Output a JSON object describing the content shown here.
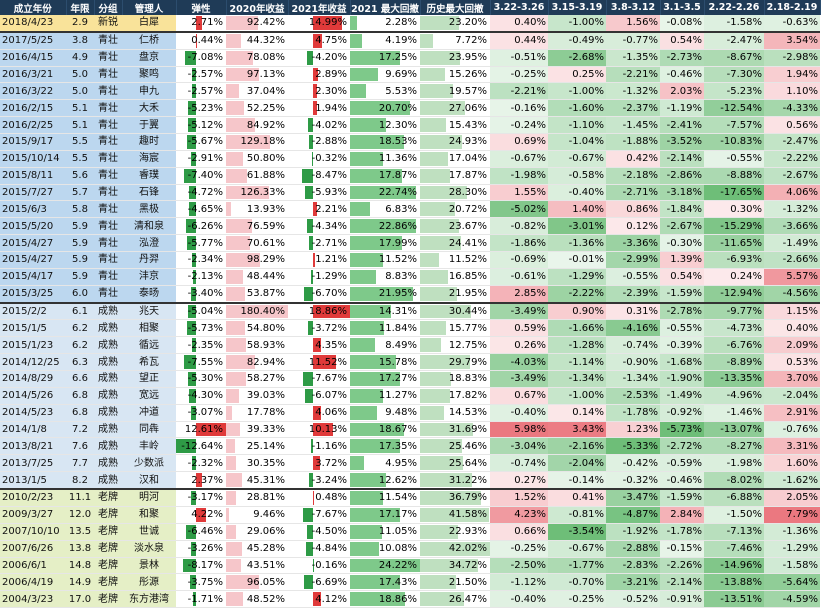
{
  "headers": [
    "成立年份",
    "年限",
    "分组",
    "管理人",
    "弹性",
    "2020年收益",
    "2021年收益",
    "2021 最大回撤",
    "历史最大回撤",
    "3.22-3.26",
    "3.15-3.19",
    "3.8-3.12",
    "3.1-3.5",
    "2.22-2.26",
    "2.18-2.19"
  ],
  "rows": [
    [
      "2018/4/23",
      "2.9",
      "新锐",
      "白犀",
      "2.71%",
      "92.42%",
      "14.99%",
      "2.28%",
      "23.20%",
      "0.40%",
      "-1.00%",
      "1.56%",
      "-0.08%",
      "-1.58%",
      "-0.63%"
    ],
    [
      "2017/5/25",
      "3.8",
      "青壮",
      "仁桥",
      "0.44%",
      "44.32%",
      "4.75%",
      "4.19%",
      "7.72%",
      "0.44%",
      "-0.49%",
      "-0.77%",
      "0.54%",
      "-2.47%",
      "3.54%"
    ],
    [
      "2016/4/15",
      "4.9",
      "青壮",
      "盘京",
      "-7.08%",
      "78.08%",
      "-4.20%",
      "17.25%",
      "23.95%",
      "-0.51%",
      "-2.68%",
      "-1.35%",
      "-2.73%",
      "-8.67%",
      "-2.98%"
    ],
    [
      "2016/3/21",
      "5.0",
      "青壮",
      "聚鸣",
      "-2.57%",
      "97.13%",
      "2.89%",
      "9.69%",
      "15.26%",
      "-0.25%",
      "0.25%",
      "-2.21%",
      "-0.46%",
      "-7.30%",
      "1.94%"
    ],
    [
      "2016/3/22",
      "5.0",
      "青壮",
      "申九",
      "-2.57%",
      "37.04%",
      "2.30%",
      "5.53%",
      "19.57%",
      "-2.21%",
      "-1.00%",
      "-1.32%",
      "2.03%",
      "-5.23%",
      "1.10%"
    ],
    [
      "2016/2/15",
      "5.1",
      "青壮",
      "大禾",
      "-5.23%",
      "52.25%",
      "1.94%",
      "20.70%",
      "27.06%",
      "-0.16%",
      "-1.60%",
      "-2.37%",
      "-1.19%",
      "-12.54%",
      "-4.33%"
    ],
    [
      "2016/2/25",
      "5.1",
      "青壮",
      "于翼",
      "-5.12%",
      "84.92%",
      "-4.02%",
      "12.30%",
      "15.43%",
      "-0.24%",
      "-1.10%",
      "-1.45%",
      "-2.41%",
      "-7.57%",
      "0.56%"
    ],
    [
      "2015/9/17",
      "5.5",
      "青壮",
      "趣时",
      "-5.67%",
      "129.18%",
      "-2.88%",
      "18.53%",
      "24.93%",
      "0.69%",
      "-1.04%",
      "-1.88%",
      "-3.52%",
      "-10.83%",
      "-2.47%"
    ],
    [
      "2015/10/14",
      "5.5",
      "青壮",
      "海宸",
      "-2.91%",
      "50.80%",
      "-0.32%",
      "11.36%",
      "17.04%",
      "-0.67%",
      "-0.67%",
      "0.42%",
      "-2.14%",
      "-0.55%",
      "-2.22%"
    ],
    [
      "2015/8/11",
      "5.6",
      "青壮",
      "睿璞",
      "-7.40%",
      "61.88%",
      "-8.47%",
      "17.87%",
      "17.87%",
      "-1.98%",
      "-0.58%",
      "-2.18%",
      "-2.86%",
      "-8.88%",
      "-2.67%"
    ],
    [
      "2015/7/27",
      "5.7",
      "青壮",
      "石锋",
      "-4.72%",
      "126.33%",
      "-5.93%",
      "22.74%",
      "28.30%",
      "1.55%",
      "-0.40%",
      "-2.71%",
      "-3.18%",
      "-17.65%",
      "4.06%"
    ],
    [
      "2015/6/3",
      "5.8",
      "青壮",
      "黑极",
      "-4.65%",
      "13.93%",
      "2.21%",
      "6.83%",
      "20.72%",
      "-5.02%",
      "1.40%",
      "0.86%",
      "-1.84%",
      "0.30%",
      "-1.32%"
    ],
    [
      "2015/5/20",
      "5.9",
      "青壮",
      "清和泉",
      "-6.26%",
      "76.59%",
      "-4.34%",
      "22.86%",
      "23.67%",
      "-0.82%",
      "-3.01%",
      "0.12%",
      "-2.67%",
      "-15.29%",
      "-3.66%"
    ],
    [
      "2015/4/27",
      "5.9",
      "青壮",
      "泓澄",
      "-5.77%",
      "70.61%",
      "-2.71%",
      "17.99%",
      "24.41%",
      "-1.86%",
      "-1.36%",
      "-3.36%",
      "-0.30%",
      "-11.65%",
      "-1.49%"
    ],
    [
      "2015/4/27",
      "5.9",
      "青壮",
      "丹羿",
      "-2.34%",
      "98.29%",
      "1.21%",
      "11.52%",
      "11.52%",
      "-0.69%",
      "-0.01%",
      "-2.99%",
      "1.39%",
      "-6.93%",
      "-2.66%"
    ],
    [
      "2015/4/17",
      "5.9",
      "青壮",
      "沣京",
      "-2.13%",
      "48.44%",
      "-1.29%",
      "8.83%",
      "16.85%",
      "-0.61%",
      "-1.29%",
      "-0.55%",
      "0.54%",
      "0.24%",
      "5.57%"
    ],
    [
      "2015/3/25",
      "6.0",
      "青壮",
      "泰旸",
      "-3.40%",
      "53.87%",
      "-6.70%",
      "21.95%",
      "21.95%",
      "2.85%",
      "-2.22%",
      "-2.39%",
      "-1.59%",
      "-12.94%",
      "-4.56%"
    ],
    [
      "2015/2/2",
      "6.1",
      "成熟",
      "兆天",
      "-5.04%",
      "180.40%",
      "18.86%",
      "14.31%",
      "30.44%",
      "-3.49%",
      "0.90%",
      "0.31%",
      "-2.78%",
      "-9.77%",
      "1.15%"
    ],
    [
      "2015/1/5",
      "6.2",
      "成熟",
      "相聚",
      "-5.73%",
      "54.80%",
      "-3.72%",
      "11.84%",
      "15.77%",
      "0.59%",
      "-1.66%",
      "-4.16%",
      "-0.55%",
      "-4.73%",
      "0.40%"
    ],
    [
      "2015/1/23",
      "6.2",
      "成熟",
      "循远",
      "-2.35%",
      "58.93%",
      "4.35%",
      "8.49%",
      "12.75%",
      "0.26%",
      "-1.28%",
      "-0.74%",
      "-0.39%",
      "-6.76%",
      "2.09%"
    ],
    [
      "2014/12/25",
      "6.3",
      "成熟",
      "希瓦",
      "-7.55%",
      "82.94%",
      "11.52%",
      "15.78%",
      "29.79%",
      "-4.03%",
      "-1.14%",
      "-0.90%",
      "-1.68%",
      "-8.89%",
      "0.53%"
    ],
    [
      "2014/8/29",
      "6.6",
      "成熟",
      "望正",
      "-5.30%",
      "58.27%",
      "-7.67%",
      "17.27%",
      "18.83%",
      "-3.49%",
      "-1.34%",
      "-1.34%",
      "-1.90%",
      "-13.35%",
      "3.70%"
    ],
    [
      "2014/5/26",
      "6.8",
      "成熟",
      "宽远",
      "-4.30%",
      "39.03%",
      "-6.07%",
      "11.27%",
      "17.82%",
      "0.67%",
      "-1.00%",
      "-2.53%",
      "-1.49%",
      "-4.96%",
      "-2.04%"
    ],
    [
      "2014/5/23",
      "6.8",
      "成熟",
      "冲道",
      "-3.07%",
      "17.78%",
      "4.06%",
      "9.48%",
      "14.53%",
      "-0.40%",
      "0.14%",
      "-1.78%",
      "-0.92%",
      "-1.46%",
      "2.91%"
    ],
    [
      "2014/1/8",
      "7.2",
      "成熟",
      "同犇",
      "12.61%",
      "39.33%",
      "10.13%",
      "18.67%",
      "31.69%",
      "5.98%",
      "3.43%",
      "1.23%",
      "-5.73%",
      "-13.07%",
      "-0.76%"
    ],
    [
      "2013/8/21",
      "7.6",
      "成熟",
      "丰岭",
      "-12.64%",
      "25.14%",
      "-1.16%",
      "17.35%",
      "25.46%",
      "-3.04%",
      "-2.16%",
      "-5.33%",
      "-2.72%",
      "-8.27%",
      "3.31%"
    ],
    [
      "2013/7/25",
      "7.7",
      "成熟",
      "少数派",
      "-2.32%",
      "30.35%",
      "3.72%",
      "4.95%",
      "25.64%",
      "-0.74%",
      "-2.04%",
      "-0.42%",
      "-0.59%",
      "-1.98%",
      "1.60%"
    ],
    [
      "2013/1/5",
      "8.2",
      "成熟",
      "汉和",
      "2.37%",
      "45.31%",
      "-3.24%",
      "12.62%",
      "31.22%",
      "0.27%",
      "-0.14%",
      "-0.32%",
      "-0.46%",
      "-8.02%",
      "-1.62%"
    ],
    [
      "2010/2/23",
      "11.1",
      "老牌",
      "明河",
      "-3.17%",
      "28.81%",
      "0.48%",
      "11.54%",
      "36.79%",
      "1.52%",
      "0.41%",
      "-3.47%",
      "-1.59%",
      "-6.88%",
      "2.05%"
    ],
    [
      "2009/3/27",
      "12.0",
      "老牌",
      "和聚",
      "4.22%",
      "9.46%",
      "-7.67%",
      "17.17%",
      "41.58%",
      "4.23%",
      "-0.81%",
      "-4.87%",
      "2.84%",
      "-1.50%",
      "7.79%"
    ],
    [
      "2007/10/10",
      "13.5",
      "老牌",
      "世诚",
      "-6.46%",
      "29.06%",
      "-4.50%",
      "11.05%",
      "22.93%",
      "0.66%",
      "-3.54%",
      "-1.92%",
      "-1.78%",
      "-7.13%",
      "-1.36%"
    ],
    [
      "2007/6/26",
      "13.8",
      "老牌",
      "淡水泉",
      "-3.26%",
      "45.28%",
      "-4.84%",
      "10.08%",
      "42.02%",
      "-0.25%",
      "-0.67%",
      "-2.88%",
      "-0.15%",
      "-7.46%",
      "-1.29%"
    ],
    [
      "2006/6/1",
      "14.8",
      "老牌",
      "景林",
      "-8.17%",
      "43.51%",
      "-0.16%",
      "24.22%",
      "34.72%",
      "-2.50%",
      "-1.77%",
      "-2.83%",
      "-2.26%",
      "-14.96%",
      "-1.58%"
    ],
    [
      "2006/4/19",
      "14.9",
      "老牌",
      "彤源",
      "-3.75%",
      "96.05%",
      "-6.69%",
      "17.43%",
      "21.50%",
      "-1.12%",
      "-0.70%",
      "-3.21%",
      "-2.14%",
      "-13.88%",
      "-5.64%"
    ],
    [
      "2004/3/23",
      "17.0",
      "老牌",
      "东方港湾",
      "-1.71%",
      "48.52%",
      "4.12%",
      "18.86%",
      "26.47%",
      "-0.40%",
      "-0.25%",
      "-0.52%",
      "-0.91%",
      "-13.51%",
      "-4.59%"
    ]
  ],
  "colors": {
    "header_bg": "#1f3b57",
    "group_xinrui": "#f9e39a",
    "group_qingzhuang": "#bcd7ef",
    "group_chengshu": "#d8e6f3",
    "group_laopai": "#e5efc6",
    "bar_positive": "#e03a3a",
    "bar_negative": "#2e9b46",
    "bar_return": "#f6c6ca",
    "bar_drawdown": "#7ec98a",
    "bar_hist": "#bfe0c0",
    "heat_pos": "#f3a6ac",
    "heat_neg": "#9fd3a6"
  }
}
